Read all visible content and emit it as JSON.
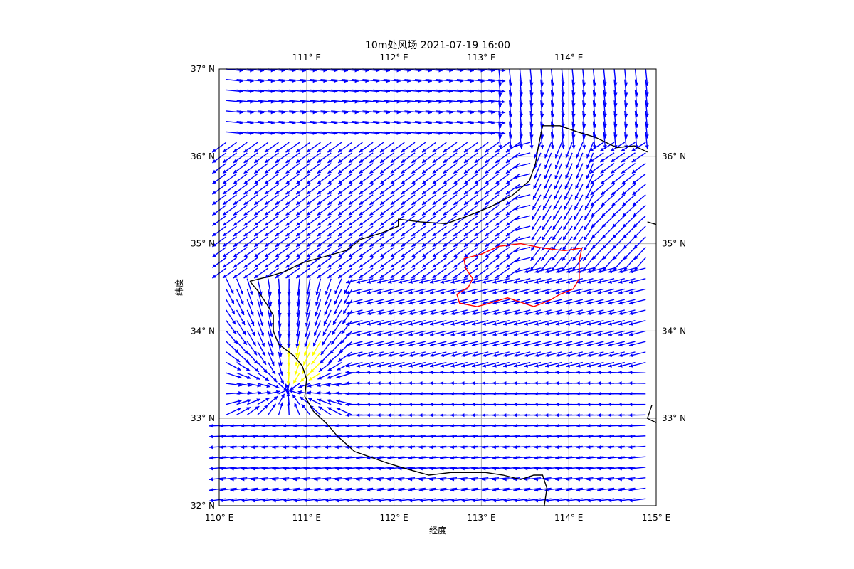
{
  "chart_data": {
    "type": "quiver",
    "title": "10m处风场 2021-07-19 16:00",
    "xlabel": "经度",
    "ylabel": "纬度",
    "xlim": [
      110,
      115
    ],
    "ylim": [
      32,
      37
    ],
    "grid": true,
    "bottom_ticks": [
      {
        "value": 110,
        "label": "110° E"
      },
      {
        "value": 111,
        "label": "111° E"
      },
      {
        "value": 112,
        "label": "112° E"
      },
      {
        "value": 113,
        "label": "113° E"
      },
      {
        "value": 114,
        "label": "114° E"
      },
      {
        "value": 115,
        "label": "115° E"
      }
    ],
    "top_ticks": [
      {
        "value": 111,
        "label": "111° E"
      },
      {
        "value": 112,
        "label": "112° E"
      },
      {
        "value": 113,
        "label": "113° E"
      },
      {
        "value": 114,
        "label": "114° E"
      }
    ],
    "left_ticks": [
      {
        "value": 32,
        "label": "32° N"
      },
      {
        "value": 33,
        "label": "33° N"
      },
      {
        "value": 34,
        "label": "34° N"
      },
      {
        "value": 35,
        "label": "35° N"
      },
      {
        "value": 36,
        "label": "36° N"
      },
      {
        "value": 37,
        "label": "37° N"
      }
    ],
    "right_ticks": [
      {
        "value": 33,
        "label": "33° N"
      },
      {
        "value": 34,
        "label": "34° N"
      },
      {
        "value": 35,
        "label": "35° N"
      },
      {
        "value": 36,
        "label": "36° N"
      }
    ],
    "vector_color": "#0000ff",
    "calm_color": "#ffff00",
    "province_boundary": {
      "color": "#000000",
      "lonlat": [
        [
          110.35,
          34.57
        ],
        [
          110.55,
          34.62
        ],
        [
          110.75,
          34.68
        ],
        [
          110.95,
          34.78
        ],
        [
          111.2,
          34.85
        ],
        [
          111.45,
          34.92
        ],
        [
          111.62,
          35.05
        ],
        [
          111.85,
          35.12
        ],
        [
          112.05,
          35.2
        ],
        [
          112.05,
          35.28
        ],
        [
          112.3,
          35.25
        ],
        [
          112.6,
          35.23
        ],
        [
          112.85,
          35.32
        ],
        [
          113.1,
          35.42
        ],
        [
          113.35,
          35.55
        ],
        [
          113.55,
          35.72
        ],
        [
          113.62,
          35.92
        ],
        [
          113.65,
          36.1
        ],
        [
          113.7,
          36.35
        ],
        [
          113.9,
          36.35
        ],
        [
          114.1,
          36.28
        ],
        [
          114.3,
          36.22
        ],
        [
          114.55,
          36.1
        ],
        [
          114.75,
          36.12
        ],
        [
          114.9,
          36.05
        ]
      ]
    },
    "province_boundary_2": {
      "color": "#000000",
      "lonlat": [
        [
          110.35,
          34.57
        ],
        [
          110.45,
          34.45
        ],
        [
          110.55,
          34.3
        ],
        [
          110.62,
          34.18
        ],
        [
          110.62,
          34.0
        ],
        [
          110.68,
          33.85
        ],
        [
          110.85,
          33.72
        ],
        [
          110.95,
          33.6
        ],
        [
          111.0,
          33.45
        ],
        [
          110.98,
          33.25
        ],
        [
          111.08,
          33.08
        ],
        [
          111.22,
          32.95
        ],
        [
          111.35,
          32.8
        ],
        [
          111.55,
          32.62
        ],
        [
          111.75,
          32.55
        ],
        [
          111.95,
          32.48
        ],
        [
          112.15,
          32.42
        ],
        [
          112.4,
          32.35
        ],
        [
          112.65,
          32.38
        ],
        [
          112.85,
          32.38
        ],
        [
          113.05,
          32.38
        ],
        [
          113.25,
          32.35
        ],
        [
          113.45,
          32.3
        ],
        [
          113.6,
          32.35
        ],
        [
          113.7,
          32.35
        ],
        [
          113.75,
          32.2
        ],
        [
          113.72,
          32.0
        ]
      ]
    },
    "province_boundary_3": {
      "color": "#000000",
      "lonlat": [
        [
          114.9,
          35.25
        ],
        [
          115.0,
          35.22
        ]
      ]
    },
    "province_boundary_4": {
      "color": "#000000",
      "lonlat": [
        [
          114.95,
          33.15
        ],
        [
          114.9,
          33.0
        ],
        [
          115.0,
          32.95
        ]
      ]
    },
    "city_boundary": {
      "color": "#ff0000",
      "lonlat": [
        [
          112.8,
          34.83
        ],
        [
          113.0,
          34.88
        ],
        [
          113.2,
          34.97
        ],
        [
          113.45,
          35.0
        ],
        [
          113.7,
          34.95
        ],
        [
          113.95,
          34.92
        ],
        [
          114.15,
          34.95
        ],
        [
          114.12,
          34.8
        ],
        [
          114.12,
          34.6
        ],
        [
          114.05,
          34.48
        ],
        [
          113.9,
          34.42
        ],
        [
          113.78,
          34.35
        ],
        [
          113.6,
          34.28
        ],
        [
          113.45,
          34.33
        ],
        [
          113.3,
          34.38
        ],
        [
          113.1,
          34.32
        ],
        [
          112.95,
          34.28
        ],
        [
          112.75,
          34.32
        ],
        [
          112.72,
          34.42
        ],
        [
          112.85,
          34.5
        ],
        [
          112.9,
          34.6
        ],
        [
          112.82,
          34.72
        ],
        [
          112.8,
          34.83
        ]
      ]
    },
    "wind_field_description": ""
  }
}
